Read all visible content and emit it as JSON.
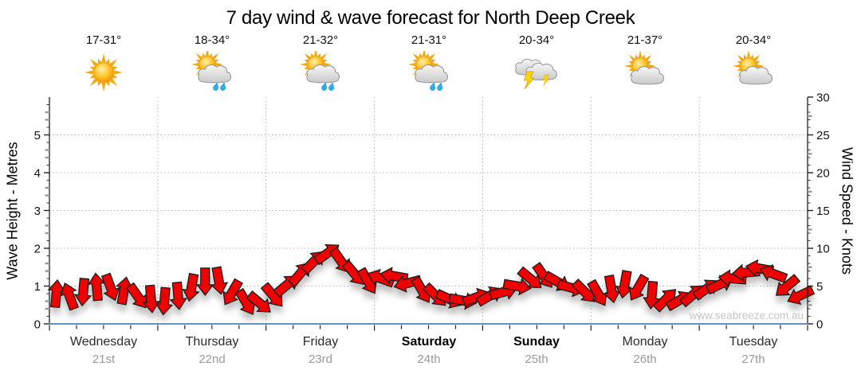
{
  "title": "7 day wind & wave forecast for North Deep Creek",
  "watermark": "www.seabreeze.com.au",
  "days": [
    {
      "name": "Wednesday",
      "date": "21st",
      "temp": "17-31°",
      "icon": "sunny",
      "weekend": false
    },
    {
      "name": "Thursday",
      "date": "22nd",
      "temp": "18-34°",
      "icon": "partly-cloudy-showers",
      "weekend": false
    },
    {
      "name": "Friday",
      "date": "23rd",
      "temp": "21-32°",
      "icon": "partly-cloudy-showers",
      "weekend": false
    },
    {
      "name": "Saturday",
      "date": "24th",
      "temp": "21-31°",
      "icon": "partly-cloudy-showers",
      "weekend": true
    },
    {
      "name": "Sunday",
      "date": "25th",
      "temp": "20-34°",
      "icon": "thunderstorm",
      "weekend": true
    },
    {
      "name": "Monday",
      "date": "26th",
      "temp": "21-37°",
      "icon": "partly-cloudy",
      "weekend": false
    },
    {
      "name": "Tuesday",
      "date": "27th",
      "temp": "20-34°",
      "icon": "partly-cloudy",
      "weekend": false
    }
  ],
  "left_axis": {
    "label": "Wave Height - Metres",
    "min": 0,
    "max": 6,
    "major_ticks": [
      0,
      1,
      2,
      3,
      4,
      5,
      6
    ],
    "unit": "m"
  },
  "right_axis": {
    "label": "Wind Speed - Knots",
    "min": 0,
    "max": 30,
    "major_ticks": [
      0,
      5,
      10,
      15,
      20,
      25,
      30
    ],
    "unit": "kn"
  },
  "colors": {
    "arrow_fill": "#ee0000",
    "arrow_stroke": "#1a1a1a",
    "baseline_blue": "#4f81bd",
    "grid_dotted": "#b3b3b3",
    "axis_black": "#222222",
    "date_grey": "#9a9a9a",
    "watermark_grey": "#c6c6c6",
    "sun_yellow": "#ffc125",
    "ray_orange": "#f5a80c",
    "cloud_grey": "#d9d9d9",
    "rain_blue": "#2fb0e8",
    "bolt_yellow": "#ffd60a"
  },
  "chart_data": {
    "type": "wind-arrows",
    "title": "7 day wind & wave forecast for North Deep Creek",
    "categories": [
      "Wednesday 21st",
      "Thursday 22nd",
      "Friday 23rd",
      "Saturday 24th",
      "Sunday 25th",
      "Monday 26th",
      "Tuesday 27th"
    ],
    "points_per_day": 8,
    "ylabel_left": "Wave Height - Metres",
    "ylim_left": [
      0,
      6
    ],
    "ylabel_right": "Wind Speed - Knots",
    "ylim_right": [
      0,
      30
    ],
    "axes_aligned": "0-6 m spans the same plot height as 0-30 kn (1 m = 5 kn)",
    "grid": "dotted horizontal lines at 1-5 m; dotted vertical lines at day boundaries",
    "legend": "red block arrows show wind speed (height on axis) and wind direction (rotation)",
    "series": [
      {
        "name": "Wind Speed (knots)",
        "values": [
          3.9,
          3.6,
          4.3,
          4.8,
          4.9,
          4.3,
          3.7,
          3.4,
          3.1,
          3.8,
          4.9,
          5.7,
          5.8,
          4.2,
          2.9,
          2.8,
          3.8,
          5.1,
          6.6,
          8.2,
          9.3,
          8.4,
          6.7,
          5.7,
          6.0,
          6.3,
          5.4,
          4.5,
          3.8,
          3.3,
          3.1,
          3.5,
          3.7,
          4.2,
          5.0,
          6.0,
          6.4,
          5.6,
          4.8,
          4.3,
          4.1,
          4.7,
          5.3,
          4.8,
          3.9,
          3.2,
          3.1,
          3.8,
          4.6,
          5.2,
          6.0,
          6.8,
          7.3,
          6.6,
          5.0,
          3.8
        ]
      },
      {
        "name": "Wind Direction (deg, 0=E, 90=S on screen)",
        "values": [
          -85,
          -110,
          95,
          -95,
          70,
          -80,
          55,
          85,
          95,
          85,
          100,
          90,
          80,
          120,
          60,
          40,
          50,
          -40,
          -50,
          -45,
          -35,
          55,
          50,
          60,
          200,
          190,
          165,
          60,
          45,
          25,
          10,
          -20,
          -30,
          -15,
          10,
          40,
          55,
          30,
          15,
          45,
          60,
          80,
          100,
          120,
          95,
          -45,
          -30,
          -40,
          -35,
          -25,
          185,
          175,
          190,
          200,
          140,
          155
        ]
      },
      {
        "name": "Wave Height equivalent (m)",
        "values": [
          0.78,
          0.72,
          0.86,
          0.96,
          0.98,
          0.86,
          0.74,
          0.68,
          0.62,
          0.76,
          0.98,
          1.14,
          1.16,
          0.84,
          0.58,
          0.56,
          0.76,
          1.02,
          1.32,
          1.64,
          1.86,
          1.68,
          1.34,
          1.14,
          1.2,
          1.26,
          1.08,
          0.9,
          0.76,
          0.66,
          0.62,
          0.7,
          0.74,
          0.84,
          1.0,
          1.2,
          1.28,
          1.12,
          0.96,
          0.86,
          0.82,
          0.94,
          1.06,
          0.96,
          0.78,
          0.64,
          0.62,
          0.76,
          0.92,
          1.04,
          1.2,
          1.36,
          1.46,
          1.32,
          1.0,
          0.76
        ]
      }
    ]
  }
}
